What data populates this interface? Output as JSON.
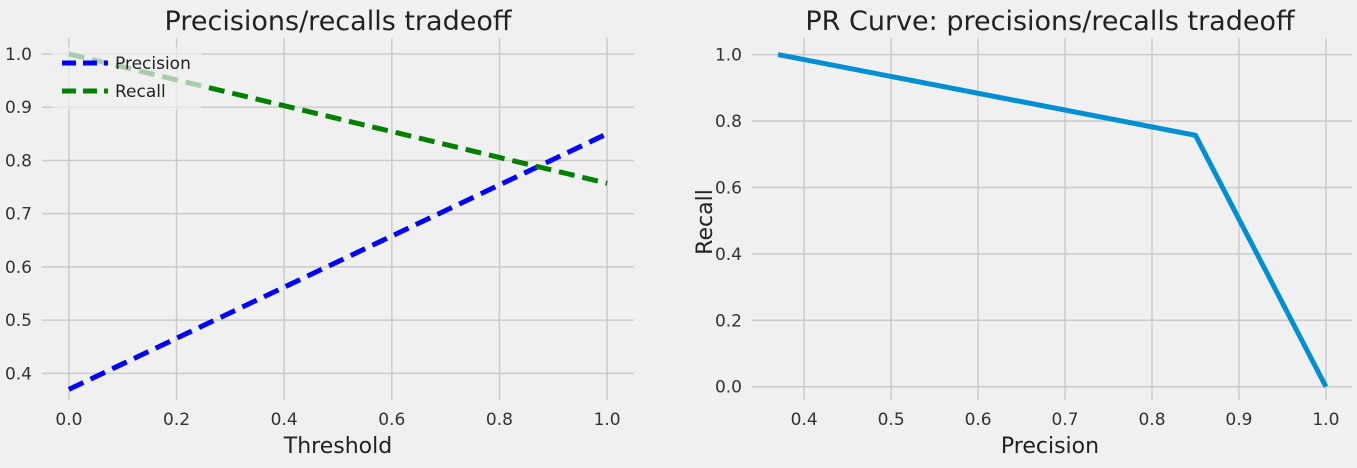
{
  "chart_data": [
    {
      "type": "line",
      "title": "Precisions/recalls tradeoff",
      "xlabel": "Threshold",
      "ylabel": "",
      "xlim": [
        -0.05,
        1.05
      ],
      "ylim": [
        0.35,
        1.03
      ],
      "xticks": [
        "0.0",
        "0.2",
        "0.4",
        "0.6",
        "0.8",
        "1.0"
      ],
      "yticks": [
        "0.4",
        "0.5",
        "0.6",
        "0.7",
        "0.8",
        "0.9",
        "1.0"
      ],
      "grid": true,
      "legend": "upper left",
      "series": [
        {
          "name": "Precision",
          "color": "#0000ff",
          "dash": "dashed",
          "x": [
            0.0,
            1.0
          ],
          "y": [
            0.37,
            0.85
          ]
        },
        {
          "name": "Recall",
          "color": "#008000",
          "dash": "dashed",
          "x": [
            0.0,
            1.0
          ],
          "y": [
            1.0,
            0.757
          ]
        }
      ]
    },
    {
      "type": "line",
      "title": "PR Curve: precisions/recalls tradeoff",
      "xlabel": "Precision",
      "ylabel": "Recall",
      "xlim": [
        0.34,
        1.03
      ],
      "ylim": [
        -0.04,
        1.05
      ],
      "xticks": [
        "0.4",
        "0.5",
        "0.6",
        "0.7",
        "0.8",
        "0.9",
        "1.0"
      ],
      "yticks": [
        "0.0",
        "0.2",
        "0.4",
        "0.6",
        "0.8",
        "1.0"
      ],
      "grid": true,
      "series": [
        {
          "color": "#008fd5",
          "dash": "solid",
          "x": [
            0.37,
            0.85,
            1.0
          ],
          "y": [
            1.0,
            0.757,
            0.0
          ]
        }
      ]
    }
  ]
}
